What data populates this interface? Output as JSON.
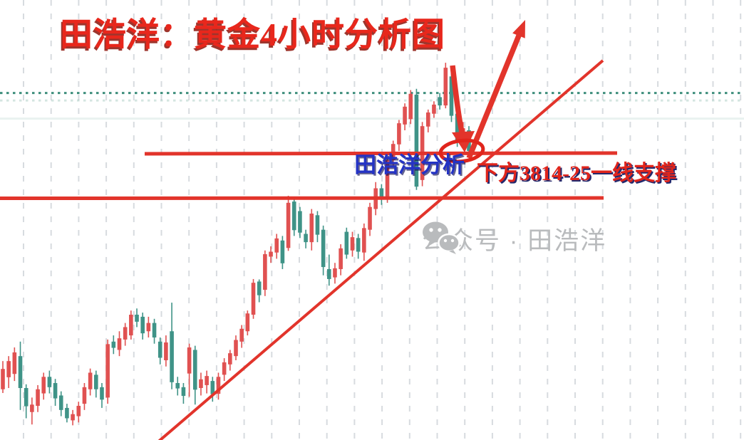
{
  "page": {
    "background": "#ffffff"
  },
  "title": {
    "text": "田浩洋：黄金4小时分析图",
    "color": "#e8271c"
  },
  "annotations": {
    "analysis_label": {
      "text": "田浩洋分析",
      "color": "#2433c4"
    },
    "support_label": {
      "text": "下方3814-25一线支撑",
      "color": "#e0251c"
    },
    "watermark": {
      "text": "公众号 · 田浩洋",
      "color": "#b9bbbd",
      "icon": "wechat-icon"
    },
    "up_arrow": "bullish-projection-arrow",
    "down_arrow": "pullback-arrow",
    "ellipse": "support-retest-zone"
  },
  "chart_data": {
    "type": "candlestick",
    "title": "田浩洋：黄金4小时分析图",
    "instrument": "黄金 (Gold)",
    "timeframe": "4小时",
    "up_color": "#e05151",
    "down_color": "#3f9387",
    "grid_color": "#d7dbdf",
    "trendline_color": "#e2342b",
    "dotted_line_color": "#3e8e7c",
    "ylim": [
      3754,
      3852
    ],
    "levels": {
      "resistance": 3825,
      "support": 3814,
      "dotted_reference": 3839.5
    },
    "support_zone_label": "3814-25",
    "candles": [
      [
        3768.0,
        3774.8,
        3767.1,
        3772.9
      ],
      [
        3770.9,
        3776.0,
        3768.3,
        3774.8
      ],
      [
        3771.7,
        3778.1,
        3770.0,
        3776.9
      ],
      [
        3776.0,
        3779.5,
        3763.0,
        3768.3
      ],
      [
        3768.3,
        3769.2,
        3761.0,
        3763.9
      ],
      [
        3762.5,
        3766.0,
        3759.5,
        3764.3
      ],
      [
        3764.0,
        3769.0,
        3762.5,
        3768.0
      ],
      [
        3767.0,
        3772.0,
        3765.5,
        3771.0
      ],
      [
        3771.0,
        3772.5,
        3767.0,
        3768.5
      ],
      [
        3769.5,
        3770.5,
        3764.0,
        3765.8
      ],
      [
        3766.5,
        3767.5,
        3761.5,
        3763.0
      ],
      [
        3763.5,
        3764.5,
        3760.0,
        3761.0
      ],
      [
        3760.5,
        3763.0,
        3759.3,
        3762.0
      ],
      [
        3761.5,
        3765.0,
        3760.0,
        3764.0
      ],
      [
        3764.5,
        3769.5,
        3763.0,
        3768.5
      ],
      [
        3768.0,
        3773.0,
        3766.5,
        3772.0
      ],
      [
        3771.5,
        3772.5,
        3766.0,
        3768.0
      ],
      [
        3768.5,
        3769.5,
        3763.5,
        3765.5
      ],
      [
        3766.0,
        3780.0,
        3764.5,
        3778.9
      ],
      [
        3779.5,
        3781.0,
        3776.5,
        3778.0
      ],
      [
        3777.5,
        3782.0,
        3776.0,
        3780.3
      ],
      [
        3780.0,
        3784.0,
        3778.5,
        3783.0
      ],
      [
        3781.0,
        3787.0,
        3780.0,
        3786.0
      ],
      [
        3786.0,
        3787.5,
        3783.0,
        3784.3
      ],
      [
        3785.5,
        3786.5,
        3780.0,
        3781.5
      ],
      [
        3782.0,
        3785.5,
        3780.5,
        3784.0
      ],
      [
        3784.0,
        3785.0,
        3779.0,
        3780.5
      ],
      [
        3779.5,
        3780.5,
        3774.0,
        3775.6
      ],
      [
        3775.0,
        3781.0,
        3773.5,
        3779.3
      ],
      [
        3782.0,
        3788.9,
        3768.0,
        3769.7
      ],
      [
        3769.5,
        3771.0,
        3766.5,
        3768.2
      ],
      [
        3768.5,
        3769.5,
        3764.5,
        3766.4
      ],
      [
        3771.8,
        3779.0,
        3766.2,
        3778.1
      ],
      [
        3777.5,
        3778.5,
        3764.3,
        3767.9
      ],
      [
        3768.3,
        3772.0,
        3766.5,
        3770.4
      ],
      [
        3769.0,
        3772.5,
        3767.0,
        3771.2
      ],
      [
        3770.0,
        3771.0,
        3765.0,
        3766.8
      ],
      [
        3766.9,
        3772.0,
        3765.5,
        3771.0
      ],
      [
        3771.5,
        3775.5,
        3770.0,
        3774.5
      ],
      [
        3774.0,
        3777.5,
        3772.5,
        3776.7
      ],
      [
        3776.0,
        3781.0,
        3775.0,
        3779.9
      ],
      [
        3779.5,
        3783.5,
        3778.0,
        3782.6
      ],
      [
        3782.0,
        3787.0,
        3781.0,
        3786.3
      ],
      [
        3786.0,
        3794.6,
        3785.0,
        3793.7
      ],
      [
        3794.0,
        3794.5,
        3789.0,
        3790.7
      ],
      [
        3792.0,
        3801.5,
        3790.5,
        3800.6
      ],
      [
        3800.0,
        3802.5,
        3798.5,
        3801.2
      ],
      [
        3801.0,
        3805.5,
        3799.5,
        3804.4
      ],
      [
        3803.9,
        3805.0,
        3797.0,
        3798.4
      ],
      [
        3802.1,
        3814.7,
        3801.4,
        3813.0
      ],
      [
        3813.3,
        3814.0,
        3805.0,
        3806.4
      ],
      [
        3811.0,
        3812.0,
        3804.5,
        3805.8
      ],
      [
        3805.5,
        3806.5,
        3802.0,
        3803.5
      ],
      [
        3803.5,
        3811.5,
        3801.5,
        3810.4
      ],
      [
        3810.0,
        3811.0,
        3803.5,
        3805.3
      ],
      [
        3806.5,
        3807.5,
        3795.5,
        3797.5
      ],
      [
        3797.0,
        3800.5,
        3793.0,
        3794.6
      ],
      [
        3795.0,
        3798.5,
        3793.5,
        3797.2
      ],
      [
        3797.0,
        3803.0,
        3795.5,
        3802.0
      ],
      [
        3806.0,
        3807.0,
        3799.5,
        3800.5
      ],
      [
        3801.5,
        3806.0,
        3800.0,
        3804.7
      ],
      [
        3804.5,
        3805.5,
        3799.5,
        3801.2
      ],
      [
        3801.0,
        3808.0,
        3799.0,
        3806.9
      ],
      [
        3806.5,
        3813.0,
        3805.0,
        3812.0
      ],
      [
        3811.5,
        3818.0,
        3810.0,
        3816.5
      ],
      [
        3816.5,
        3817.5,
        3812.5,
        3814.0
      ],
      [
        3814.5,
        3824.0,
        3813.0,
        3823.3
      ],
      [
        3823.3,
        3828.0,
        3821.5,
        3827.2
      ],
      [
        3827.1,
        3833.0,
        3825.5,
        3832.2
      ],
      [
        3831.9,
        3837.0,
        3830.5,
        3836.2
      ],
      [
        3833.2,
        3840.2,
        3832.0,
        3839.3
      ],
      [
        3839.1,
        3840.5,
        3816.1,
        3816.9
      ],
      [
        3818.5,
        3832.5,
        3817.0,
        3831.5
      ],
      [
        3831.4,
        3835.5,
        3830.0,
        3834.8
      ],
      [
        3834.5,
        3837.5,
        3833.5,
        3836.7
      ],
      [
        3838.5,
        3839.5,
        3835.5,
        3836.5
      ],
      [
        3836.5,
        3846.8,
        3835.8,
        3845.6
      ],
      [
        3843.5,
        3845.0,
        3832.5,
        3834.0
      ],
      [
        3834.5,
        3836.0,
        3826.5,
        3828.0
      ],
      [
        3828.5,
        3832.5,
        3826.0,
        3831.0
      ],
      [
        3830.5,
        3831.5,
        3824.0,
        3825.5
      ]
    ]
  }
}
